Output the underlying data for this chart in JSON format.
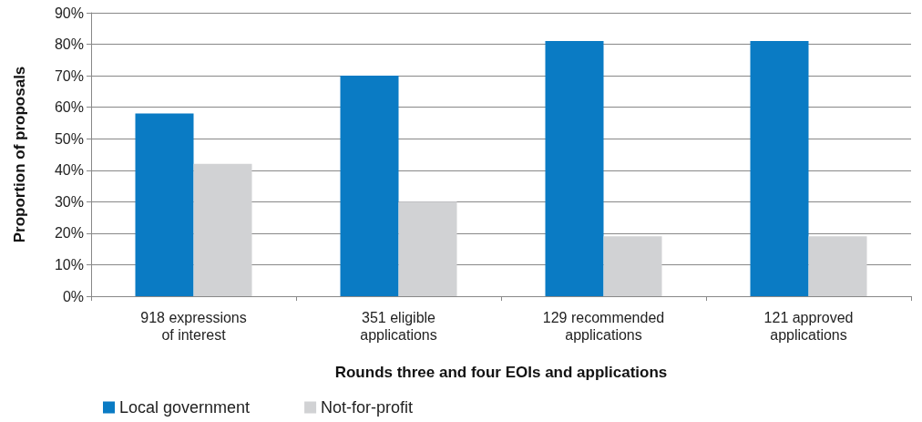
{
  "chart_data": {
    "type": "bar",
    "xlabel": "Rounds three and four EOIs and applications",
    "ylabel": "Proportion of proposals",
    "categories": [
      "918 expressions\nof interest",
      "351 eligible\napplications",
      "129 recommended\napplications",
      "121 approved\napplications"
    ],
    "series": [
      {
        "name": "Local government",
        "color": "#0a7bc4",
        "values": [
          58,
          70,
          81,
          81
        ]
      },
      {
        "name": "Not-for-profit",
        "color": "#d1d2d4",
        "values": [
          42,
          30,
          19,
          19
        ]
      }
    ],
    "ylim": [
      0,
      90
    ],
    "yticks": [
      {
        "value": 0,
        "label": "0%"
      },
      {
        "value": 10,
        "label": "10%"
      },
      {
        "value": 20,
        "label": "20%"
      },
      {
        "value": 30,
        "label": "30%"
      },
      {
        "value": 40,
        "label": "40%"
      },
      {
        "value": 50,
        "label": "50%"
      },
      {
        "value": 60,
        "label": "60%"
      },
      {
        "value": 70,
        "label": "70%"
      },
      {
        "value": 80,
        "label": "80%"
      },
      {
        "value": 90,
        "label": "90%"
      }
    ],
    "grid": "y",
    "legend": "bottom left"
  }
}
